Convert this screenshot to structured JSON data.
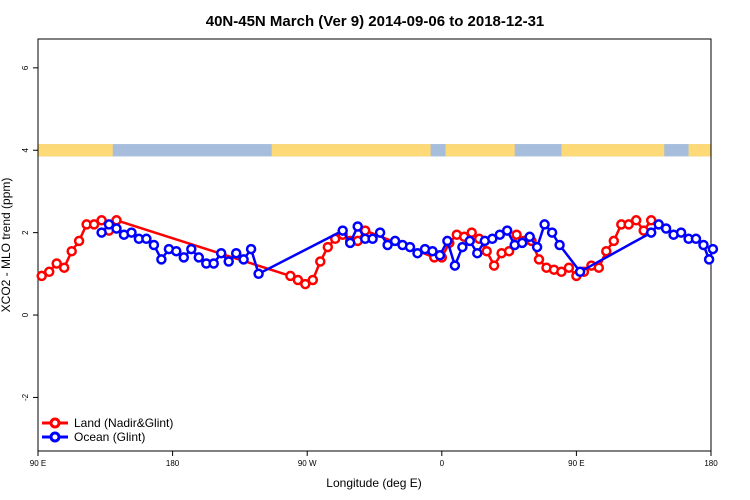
{
  "chart_data": {
    "type": "line",
    "title": "40N-45N March (Ver 9)   2014-09-06 to 2018-12-31",
    "xlabel": "Longitude (deg E)",
    "ylabel": "XCO2 - MLO trend (ppm)",
    "xlim": [
      90,
      450
    ],
    "ylim": [
      -3.3,
      6.7
    ],
    "x_ticks": [
      {
        "value": 90,
        "label": "90 E"
      },
      {
        "value": 162,
        "label": "180"
      },
      {
        "value": 234,
        "label": "90 W"
      },
      {
        "value": 306,
        "label": "0"
      },
      {
        "value": 378,
        "label": "90 E"
      },
      {
        "value": 450,
        "label": "180"
      }
    ],
    "y_ticks": [
      {
        "value": -2,
        "label": "-2"
      },
      {
        "value": 0,
        "label": "0"
      },
      {
        "value": 2,
        "label": "2"
      },
      {
        "value": 4,
        "label": "4"
      },
      {
        "value": 6,
        "label": "6"
      }
    ],
    "grid": false,
    "legend_position": "bottom-left",
    "land_mask": {
      "y_range": [
        3.85,
        4.15
      ],
      "land_color": "#fdd978",
      "ocean_color": "#a6bddb",
      "land_segments": [
        [
          90,
          130
        ],
        [
          215,
          300
        ],
        [
          308,
          345
        ],
        [
          370,
          425
        ],
        [
          438,
          450
        ]
      ]
    },
    "series": [
      {
        "name": "Land (Nadir&Glint)",
        "color": "#ff0000",
        "points": [
          [
            92,
            0.95
          ],
          [
            96,
            1.05
          ],
          [
            100,
            1.25
          ],
          [
            104,
            1.15
          ],
          [
            108,
            1.55
          ],
          [
            112,
            1.8
          ],
          [
            116,
            2.2
          ],
          [
            120,
            2.2
          ],
          [
            124,
            2.3
          ],
          [
            128,
            2.05
          ],
          [
            132,
            2.3
          ],
          [
            225,
            0.95
          ],
          [
            229,
            0.85
          ],
          [
            233,
            0.75
          ],
          [
            237,
            0.85
          ],
          [
            241,
            1.3
          ],
          [
            245,
            1.65
          ],
          [
            249,
            1.85
          ],
          [
            253,
            1.95
          ],
          [
            257,
            1.8
          ],
          [
            261,
            1.8
          ],
          [
            265,
            2.05
          ],
          [
            302,
            1.4
          ],
          [
            306,
            1.4
          ],
          [
            310,
            1.75
          ],
          [
            314,
            1.95
          ],
          [
            318,
            1.9
          ],
          [
            322,
            2.0
          ],
          [
            326,
            1.85
          ],
          [
            330,
            1.55
          ],
          [
            334,
            1.2
          ],
          [
            338,
            1.5
          ],
          [
            342,
            1.55
          ],
          [
            346,
            1.95
          ],
          [
            350,
            1.8
          ],
          [
            354,
            1.8
          ],
          [
            358,
            1.35
          ],
          [
            362,
            1.15
          ],
          [
            366,
            1.1
          ],
          [
            370,
            1.05
          ],
          [
            374,
            1.15
          ],
          [
            378,
            0.95
          ],
          [
            382,
            1.05
          ],
          [
            386,
            1.2
          ],
          [
            390,
            1.15
          ],
          [
            394,
            1.55
          ],
          [
            398,
            1.8
          ],
          [
            402,
            2.2
          ],
          [
            406,
            2.2
          ],
          [
            410,
            2.3
          ],
          [
            414,
            2.05
          ],
          [
            418,
            2.3
          ]
        ]
      },
      {
        "name": "Ocean (Glint)",
        "color": "#0000ff",
        "points": [
          [
            124,
            2.0
          ],
          [
            128,
            2.2
          ],
          [
            132,
            2.1
          ],
          [
            136,
            1.95
          ],
          [
            140,
            2.0
          ],
          [
            144,
            1.85
          ],
          [
            148,
            1.85
          ],
          [
            152,
            1.7
          ],
          [
            156,
            1.35
          ],
          [
            160,
            1.6
          ],
          [
            164,
            1.55
          ],
          [
            168,
            1.4
          ],
          [
            172,
            1.6
          ],
          [
            176,
            1.4
          ],
          [
            180,
            1.25
          ],
          [
            184,
            1.25
          ],
          [
            188,
            1.5
          ],
          [
            192,
            1.3
          ],
          [
            196,
            1.5
          ],
          [
            200,
            1.35
          ],
          [
            204,
            1.6
          ],
          [
            208,
            1.0
          ],
          [
            253,
            2.05
          ],
          [
            257,
            1.75
          ],
          [
            261,
            2.15
          ],
          [
            265,
            1.85
          ],
          [
            269,
            1.85
          ],
          [
            273,
            2.0
          ],
          [
            277,
            1.7
          ],
          [
            281,
            1.8
          ],
          [
            285,
            1.7
          ],
          [
            289,
            1.65
          ],
          [
            293,
            1.5
          ],
          [
            297,
            1.6
          ],
          [
            301,
            1.55
          ],
          [
            305,
            1.45
          ],
          [
            309,
            1.8
          ],
          [
            313,
            1.2
          ],
          [
            317,
            1.65
          ],
          [
            321,
            1.8
          ],
          [
            325,
            1.5
          ],
          [
            329,
            1.8
          ],
          [
            333,
            1.85
          ],
          [
            337,
            1.95
          ],
          [
            341,
            2.05
          ],
          [
            345,
            1.7
          ],
          [
            349,
            1.75
          ],
          [
            353,
            1.9
          ],
          [
            357,
            1.65
          ],
          [
            361,
            2.2
          ],
          [
            365,
            2.0
          ],
          [
            369,
            1.7
          ],
          [
            380,
            1.05
          ],
          [
            418,
            2.0
          ],
          [
            422,
            2.2
          ],
          [
            426,
            2.1
          ],
          [
            430,
            1.95
          ],
          [
            434,
            2.0
          ],
          [
            438,
            1.85
          ],
          [
            442,
            1.85
          ],
          [
            446,
            1.7
          ],
          [
            449,
            1.35
          ],
          [
            451,
            1.6
          ]
        ]
      }
    ]
  }
}
